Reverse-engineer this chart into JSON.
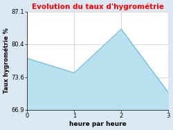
{
  "title": "Evolution du taux d'hygrométrie",
  "title_color": "#ff0000",
  "xlabel": "heure par heure",
  "ylabel": "Taux hygrométrie %",
  "x": [
    0,
    1,
    2,
    3
  ],
  "y": [
    77.5,
    74.5,
    83.5,
    70.5
  ],
  "ylim": [
    66.9,
    87.1
  ],
  "xlim": [
    0,
    3
  ],
  "yticks": [
    66.9,
    73.6,
    80.4,
    87.1
  ],
  "xticks": [
    0,
    1,
    2,
    3
  ],
  "fill_color": "#b8e0ee",
  "line_color": "#5bb8d4",
  "background_color": "#dce9f5",
  "plot_bg_color": "#ffffff",
  "grid_color": "#bbbbbb",
  "title_fontsize": 7.5,
  "label_fontsize": 6.5,
  "tick_fontsize": 6,
  "ylabel_fontsize": 6
}
